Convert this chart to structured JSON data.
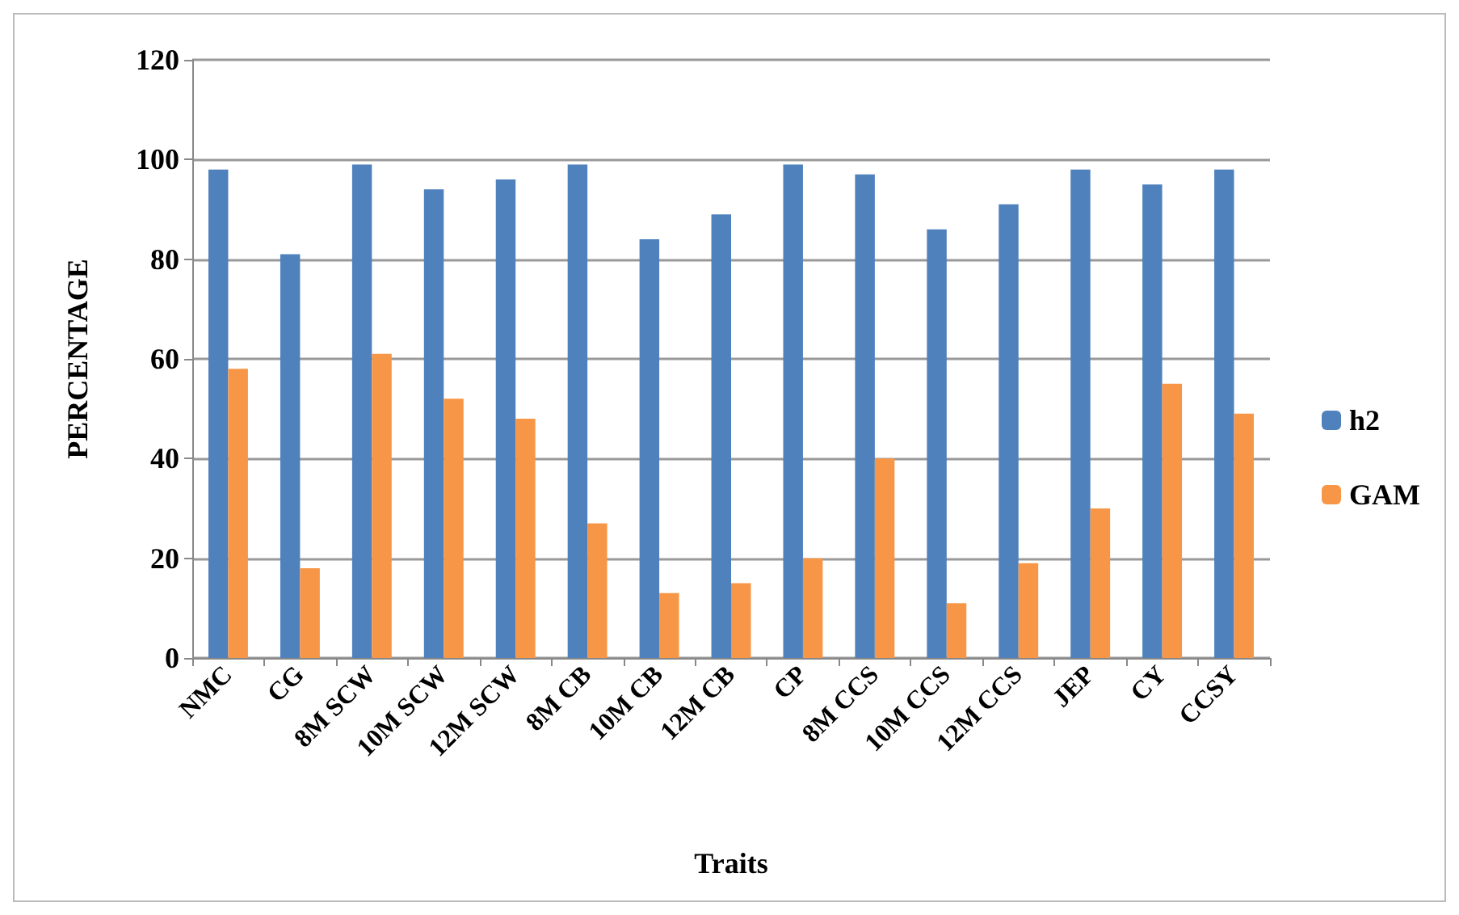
{
  "chart_data": {
    "type": "bar",
    "xlabel": "Traits",
    "ylabel": "PERCENTAGE",
    "categories": [
      "NMC",
      "CG",
      "8M SCW",
      "10M SCW",
      "12M SCW",
      "8M CB",
      "10M CB",
      "12M CB",
      "CP",
      "8M CCS",
      "10M CCS",
      "12M CCS",
      "JEP",
      "CY",
      "CCSY"
    ],
    "series": [
      {
        "name": "h2",
        "color": "#4f81bd",
        "values": [
          98,
          81,
          99,
          94,
          96,
          99,
          84,
          89,
          99,
          97,
          86,
          91,
          98,
          95,
          98
        ]
      },
      {
        "name": "GAM",
        "color": "#f79646",
        "values": [
          58,
          18,
          61,
          52,
          48,
          27,
          13,
          15,
          20,
          40,
          11,
          19,
          30,
          55,
          49
        ]
      }
    ],
    "ylim": [
      0,
      120
    ],
    "yticks": [
      0,
      20,
      40,
      60,
      80,
      100,
      120
    ],
    "grid": "y",
    "legend": "right"
  }
}
